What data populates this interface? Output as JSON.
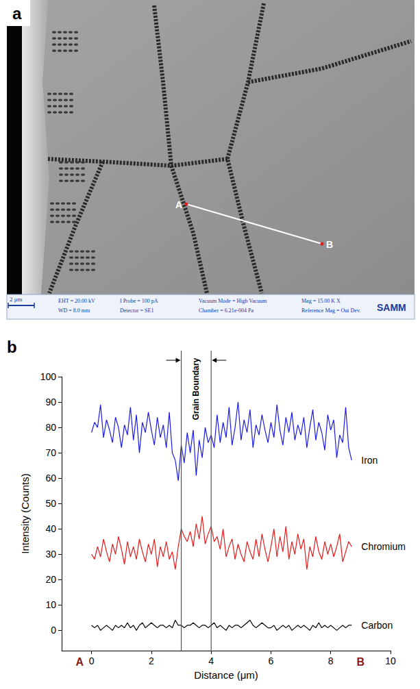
{
  "panel_a": {
    "letter": "a",
    "points": [
      "A",
      "B"
    ],
    "scale_bar": "2 μm",
    "info": [
      "EHT = 20.00 kV",
      "WD = 8.0 mm",
      "I Probe = 100 pA",
      "Detector = SE1",
      "Vacuum Mode = High Vacuum",
      "Chamber = 6.21e-004 Pa",
      "Mag = 15.00 K X",
      "Reference Mag = Out Dev."
    ],
    "logo": "SAMM"
  },
  "chart_data": {
    "type": "line",
    "panel_label": "b",
    "xlabel": "Distance (μm)",
    "ylabel": "Intensity (Counts)",
    "x": [
      0,
      0.1,
      0.2,
      0.3,
      0.4,
      0.5,
      0.6,
      0.7,
      0.8,
      0.9,
      1,
      1.1,
      1.2,
      1.3,
      1.4,
      1.5,
      1.6,
      1.7,
      1.8,
      1.9,
      2,
      2.1,
      2.2,
      2.3,
      2.4,
      2.5,
      2.6,
      2.7,
      2.8,
      2.9,
      3,
      3.1,
      3.2,
      3.3,
      3.4,
      3.5,
      3.6,
      3.7,
      3.8,
      3.9,
      4,
      4.1,
      4.2,
      4.3,
      4.4,
      4.5,
      4.6,
      4.7,
      4.8,
      4.9,
      5,
      5.1,
      5.2,
      5.3,
      5.4,
      5.5,
      5.6,
      5.7,
      5.8,
      5.9,
      6,
      6.1,
      6.2,
      6.3,
      6.4,
      6.5,
      6.6,
      6.7,
      6.8,
      6.9,
      7,
      7.1,
      7.2,
      7.3,
      7.4,
      7.5,
      7.6,
      7.7,
      7.8,
      7.9,
      8,
      8.1,
      8.2,
      8.3,
      8.4,
      8.5,
      8.6,
      8.7
    ],
    "series": [
      {
        "name": "Iron",
        "color": "#1a1ae6",
        "values": [
          78,
          82,
          80,
          89,
          76,
          83,
          79,
          74,
          84,
          80,
          72,
          81,
          77,
          88,
          75,
          85,
          70,
          82,
          78,
          86,
          79,
          73,
          84,
          76,
          81,
          72,
          86,
          70,
          67,
          59,
          73,
          66,
          78,
          70,
          79,
          61,
          75,
          68,
          80,
          74,
          77,
          72,
          85,
          74,
          82,
          76,
          88,
          73,
          80,
          90,
          75,
          83,
          78,
          87,
          72,
          81,
          77,
          85,
          79,
          74,
          82,
          76,
          89,
          79,
          73,
          84,
          78,
          86,
          75,
          81,
          77,
          84,
          72,
          80,
          87,
          75,
          82,
          78,
          71,
          85,
          79,
          83,
          68,
          77,
          74,
          88,
          72,
          67
        ]
      },
      {
        "name": "Chromium",
        "color": "#e61a1a",
        "values": [
          30,
          28,
          33,
          29,
          36,
          31,
          27,
          34,
          30,
          37,
          32,
          26,
          35,
          29,
          33,
          28,
          36,
          31,
          27,
          34,
          30,
          36,
          25,
          33,
          29,
          35,
          28,
          31,
          24,
          33,
          40,
          37,
          35,
          39,
          33,
          42,
          36,
          45,
          34,
          38,
          41,
          35,
          37,
          32,
          40,
          29,
          33,
          36,
          28,
          34,
          30,
          27,
          35,
          31,
          28,
          36,
          29,
          38,
          32,
          27,
          33,
          40,
          29,
          37,
          31,
          41,
          28,
          35,
          30,
          38,
          32,
          36,
          24,
          33,
          29,
          37,
          31,
          28,
          35,
          30,
          34,
          29,
          33,
          38,
          27,
          31,
          35,
          33
        ]
      },
      {
        "name": "Carbon",
        "color": "#000000",
        "values": [
          2,
          1,
          2,
          0,
          1,
          2,
          1,
          0,
          2,
          1,
          2,
          1,
          3,
          1,
          2,
          0,
          2,
          3,
          1,
          2,
          3,
          2,
          1,
          2,
          2,
          1,
          2,
          1,
          4,
          2,
          2,
          1,
          2,
          2,
          3,
          2,
          1,
          2,
          2,
          1,
          2,
          3,
          1,
          2,
          1,
          0,
          2,
          1,
          2,
          2,
          1,
          2,
          3,
          4,
          2,
          1,
          2,
          3,
          2,
          1,
          1,
          2,
          0,
          1,
          2,
          1,
          2,
          0,
          1,
          2,
          1,
          2,
          1,
          0,
          2,
          1,
          3,
          1,
          2,
          1,
          2,
          1,
          0,
          1,
          2,
          1,
          2,
          2
        ]
      }
    ],
    "xlim": [
      -1,
      10
    ],
    "xticks": [
      0,
      2,
      4,
      6,
      8,
      10
    ],
    "ylim": [
      -8,
      100
    ],
    "yticks": [
      0,
      10,
      20,
      30,
      40,
      50,
      60,
      70,
      80,
      90,
      100
    ],
    "annotations": [
      {
        "text": "Grain Boundary",
        "x": [
          3,
          4
        ]
      }
    ],
    "point_labels": [
      {
        "text": "A",
        "x": -0.4
      },
      {
        "text": "B",
        "x": 9.0
      }
    ],
    "grid": false
  }
}
